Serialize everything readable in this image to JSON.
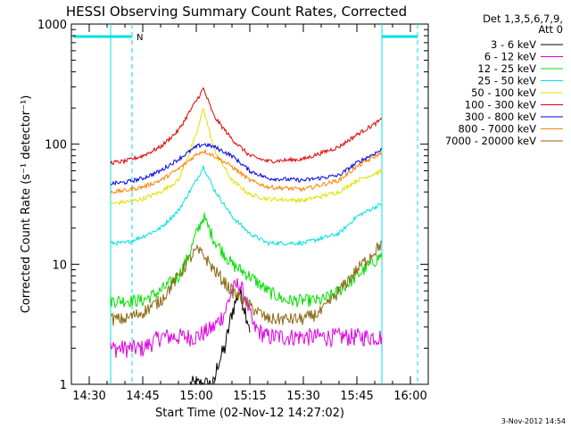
{
  "chart_data": {
    "type": "line",
    "title": "HESSI Observing Summary Count Rates, Corrected",
    "xlabel": "Start Time (02-Nov-12 14:27:02)",
    "ylabel": "Corrected Count Rate (s⁻¹ detector⁻¹)",
    "x_scale": "time",
    "y_scale": "log",
    "xlim": [
      "14:25",
      "16:05"
    ],
    "ylim": [
      1,
      1000
    ],
    "x_ticks": [
      "14:30",
      "14:45",
      "15:00",
      "15:15",
      "15:30",
      "15:45",
      "16:00"
    ],
    "y_ticks": [
      "1",
      "10",
      "100",
      "1000"
    ],
    "legend_title": [
      "Det 1,3,5,6,7,9,",
      "Att 0"
    ],
    "legend_position": "outside-right-top",
    "timestamp": "3-Nov-2012 14:54",
    "data_window": [
      "14:36",
      "15:52"
    ],
    "markers": {
      "night_start": "14:36",
      "night_end": "15:52",
      "saa_dashed": [
        "14:42",
        "16:02"
      ],
      "night_label": "N"
    },
    "series": [
      {
        "name": "3 - 6 keV",
        "color": "#000000",
        "x": [
          "14:36",
          "14:45",
          "14:55",
          "14:58",
          "15:00",
          "15:03",
          "15:05",
          "15:06",
          "15:08",
          "15:10",
          "15:12",
          "15:13",
          "15:15",
          "15:25",
          "15:40",
          "15:52"
        ],
        "y": [
          null,
          null,
          null,
          1,
          1,
          1,
          1,
          1.5,
          2,
          4,
          6,
          5,
          3,
          null,
          null,
          null
        ]
      },
      {
        "name": "6 - 12 keV",
        "color": "#e000e0",
        "x": [
          "14:36",
          "14:45",
          "14:50",
          "14:55",
          "15:00",
          "15:05",
          "15:08",
          "15:10",
          "15:12",
          "15:14",
          "15:16",
          "15:20",
          "15:30",
          "15:40",
          "15:52"
        ],
        "y": [
          2,
          2,
          2.5,
          2.5,
          2.5,
          3,
          4,
          6,
          7,
          5,
          3,
          2.5,
          2.5,
          2.5,
          2.5
        ]
      },
      {
        "name": "12 - 25 keV",
        "color": "#00e000",
        "x": [
          "14:36",
          "14:45",
          "14:50",
          "14:55",
          "14:58",
          "15:00",
          "15:02",
          "15:05",
          "15:10",
          "15:15",
          "15:20",
          "15:25",
          "15:30",
          "15:35",
          "15:40",
          "15:45",
          "15:52"
        ],
        "y": [
          5,
          5,
          6,
          8,
          12,
          18,
          25,
          16,
          10,
          8,
          6,
          5,
          5,
          5,
          6,
          8,
          12
        ]
      },
      {
        "name": "25 - 50 keV",
        "color": "#00e0e0",
        "x": [
          "14:36",
          "14:40",
          "14:45",
          "14:50",
          "14:55",
          "15:00",
          "15:02",
          "15:05",
          "15:10",
          "15:15",
          "15:20",
          "15:30",
          "15:40",
          "15:45",
          "15:52"
        ],
        "y": [
          15,
          15,
          17,
          20,
          28,
          50,
          65,
          42,
          25,
          18,
          15,
          15,
          18,
          25,
          32
        ]
      },
      {
        "name": "50 - 100 keV",
        "color": "#e0e000",
        "x": [
          "14:36",
          "14:40",
          "14:45",
          "14:50",
          "14:55",
          "15:00",
          "15:02",
          "15:05",
          "15:10",
          "15:15",
          "15:20",
          "15:30",
          "15:40",
          "15:45",
          "15:52"
        ],
        "y": [
          32,
          33,
          35,
          40,
          50,
          120,
          200,
          90,
          50,
          38,
          35,
          34,
          40,
          50,
          60
        ]
      },
      {
        "name": "100 - 300 keV",
        "color": "#e00000",
        "x": [
          "14:36",
          "14:40",
          "14:45",
          "14:50",
          "14:55",
          "15:00",
          "15:02",
          "15:05",
          "15:10",
          "15:15",
          "15:20",
          "15:30",
          "15:40",
          "15:45",
          "15:52"
        ],
        "y": [
          70,
          72,
          80,
          95,
          130,
          230,
          290,
          170,
          110,
          80,
          72,
          75,
          95,
          120,
          160
        ]
      },
      {
        "name": "300 - 800 keV",
        "color": "#0000e0",
        "x": [
          "14:36",
          "14:40",
          "14:45",
          "14:50",
          "14:55",
          "15:00",
          "15:02",
          "15:05",
          "15:10",
          "15:15",
          "15:20",
          "15:30",
          "15:40",
          "15:45",
          "15:52"
        ],
        "y": [
          47,
          48,
          52,
          60,
          75,
          95,
          100,
          95,
          80,
          60,
          52,
          50,
          55,
          70,
          90
        ]
      },
      {
        "name": "800 - 7000 keV",
        "color": "#ff8000",
        "x": [
          "14:36",
          "14:40",
          "14:45",
          "14:50",
          "14:55",
          "15:00",
          "15:02",
          "15:05",
          "15:10",
          "15:15",
          "15:20",
          "15:30",
          "15:40",
          "15:45",
          "15:52"
        ],
        "y": [
          40,
          41,
          44,
          50,
          62,
          82,
          88,
          80,
          65,
          50,
          44,
          42,
          50,
          65,
          85
        ]
      },
      {
        "name": "7000 - 20000 keV",
        "color": "#8b6914",
        "x": [
          "14:36",
          "14:40",
          "14:45",
          "14:50",
          "14:55",
          "14:58",
          "15:00",
          "15:02",
          "15:05",
          "15:10",
          "15:15",
          "15:20",
          "15:25",
          "15:30",
          "15:35",
          "15:40",
          "15:45",
          "15:52"
        ],
        "y": [
          3.5,
          3.5,
          4,
          5,
          8,
          11,
          13,
          12,
          9,
          6,
          4.5,
          3.5,
          3.5,
          3.5,
          4,
          6,
          9,
          15
        ]
      }
    ]
  }
}
